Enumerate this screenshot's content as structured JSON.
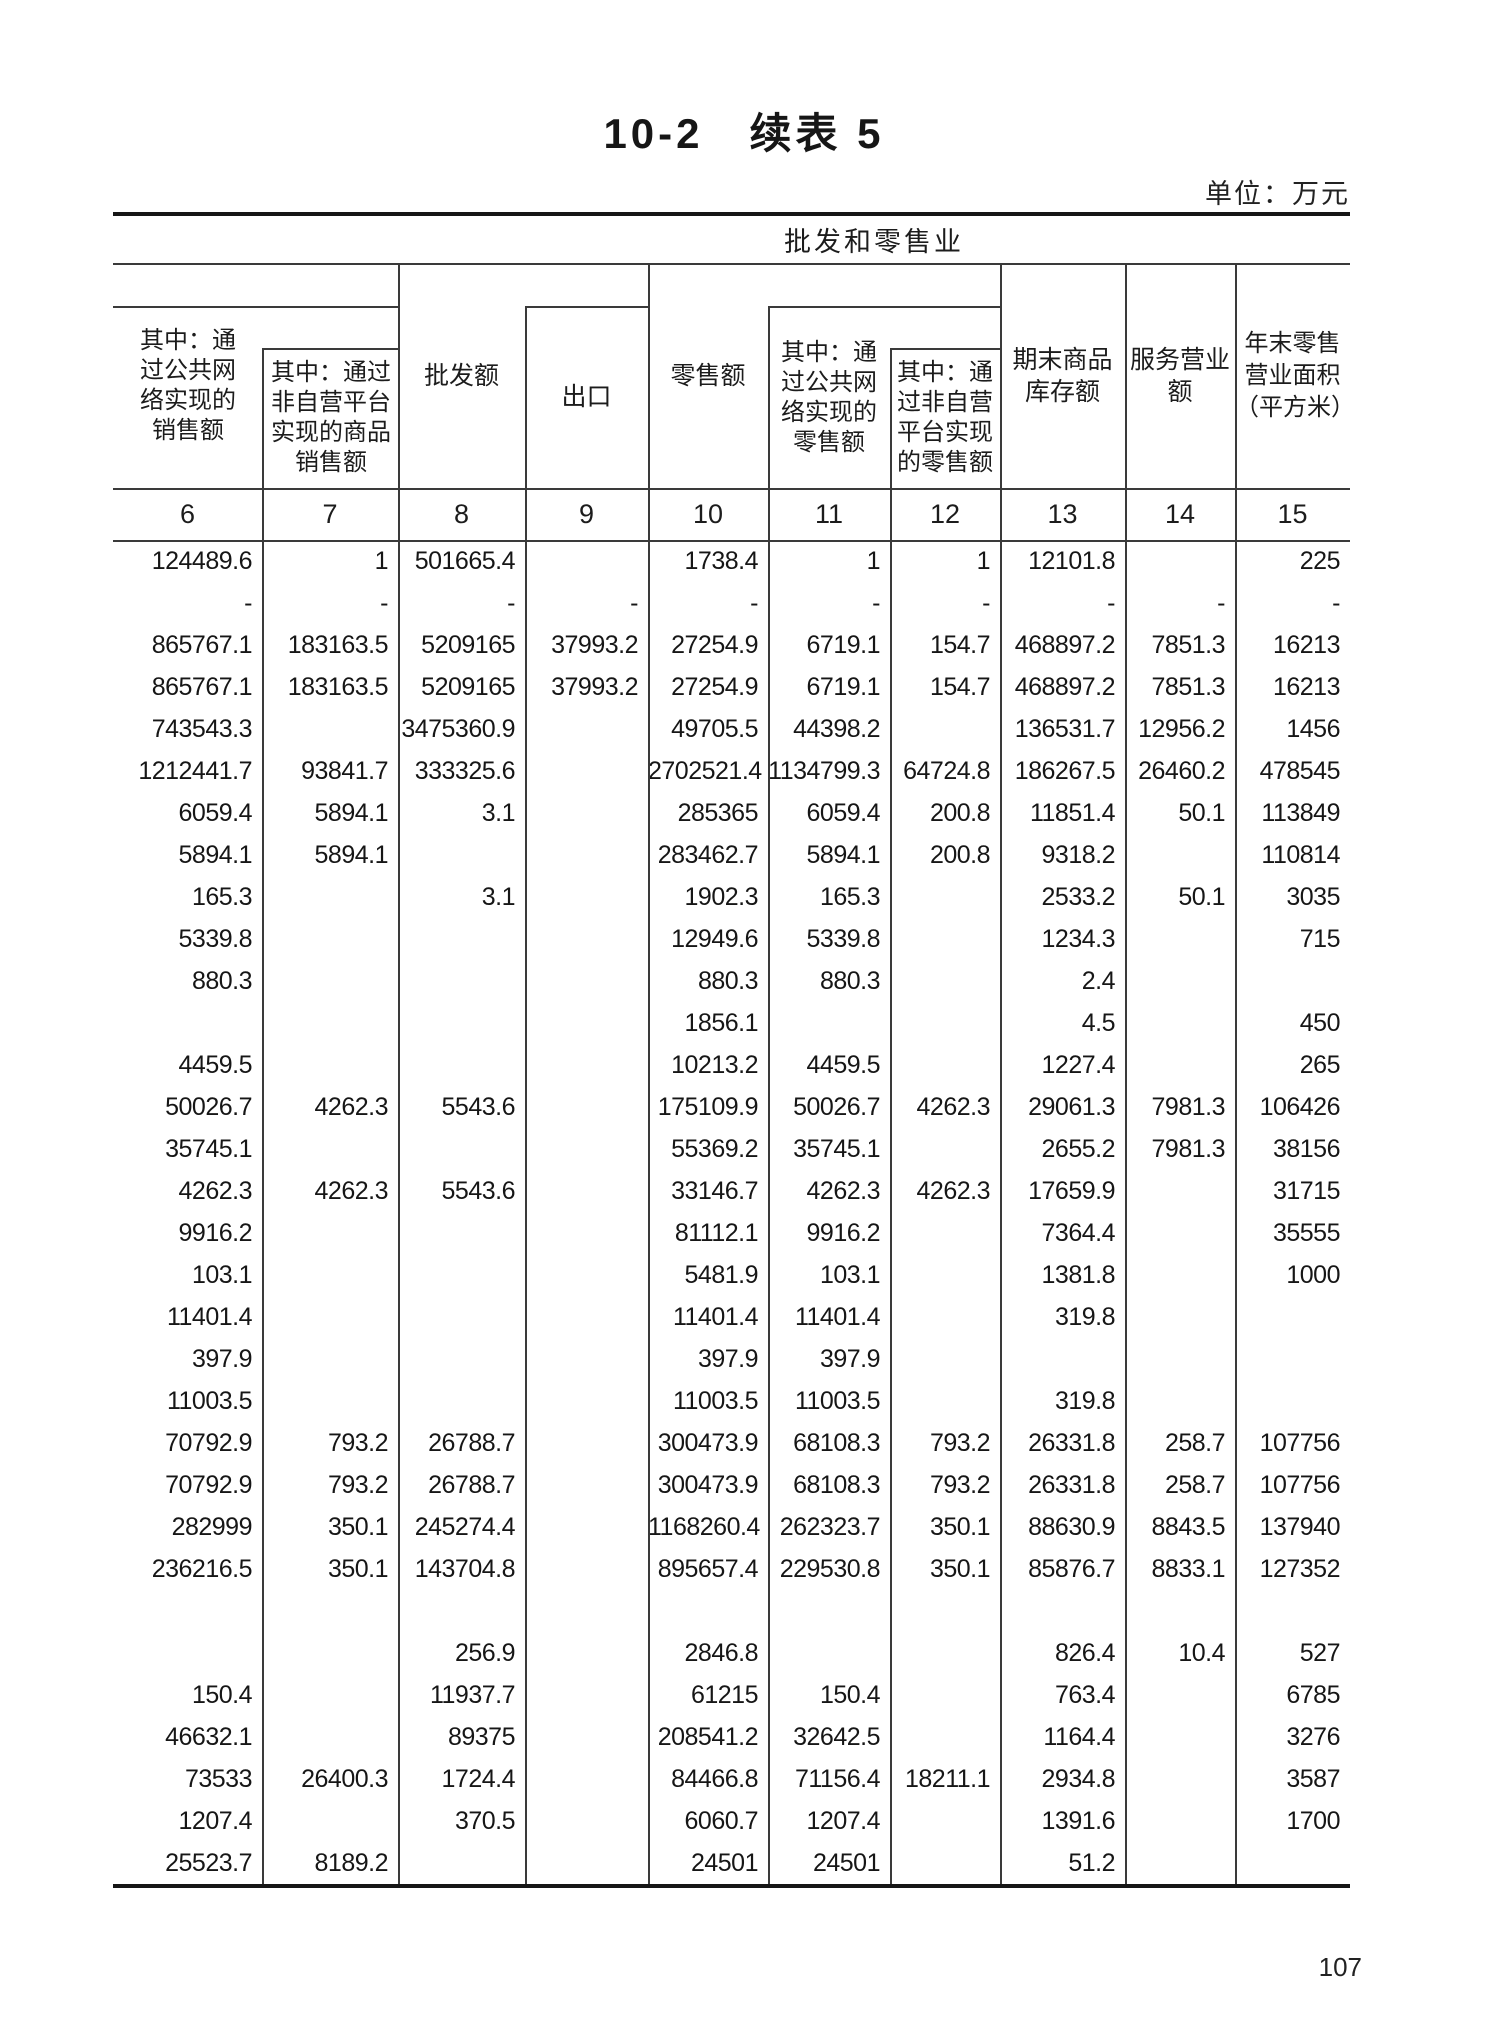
{
  "page": {
    "title": "10-2　续表 5",
    "unit_label": "单位：万元",
    "page_number": "107"
  },
  "table": {
    "group_header": "批发和零售业",
    "columns": [
      {
        "code": "6",
        "label": "其中：通\n过公共网\n络实现的\n销售额"
      },
      {
        "code": "7",
        "label": "其中：通过\n非自营平台\n实现的商品\n销售额"
      },
      {
        "code": "8",
        "label": "批发额"
      },
      {
        "code": "9",
        "label": "出口"
      },
      {
        "code": "10",
        "label": "零售额"
      },
      {
        "code": "11",
        "label": "其中：通\n过公共网\n络实现的\n零售额"
      },
      {
        "code": "12",
        "label": "其中：通\n过非自营\n平台实现\n的零售额"
      },
      {
        "code": "13",
        "label": "期末商品\n库存额"
      },
      {
        "code": "14",
        "label": "服务营业\n额"
      },
      {
        "code": "15",
        "label": "年末零售\n营业面积\n（平方米）"
      }
    ],
    "rows": [
      [
        "124489.6",
        "1",
        "501665.4",
        "",
        "1738.4",
        "1",
        "1",
        "12101.8",
        "",
        "225"
      ],
      [
        "-",
        "-",
        "-",
        "-",
        "-",
        "-",
        "-",
        "-",
        "-",
        "-"
      ],
      [
        "865767.1",
        "183163.5",
        "5209165",
        "37993.2",
        "27254.9",
        "6719.1",
        "154.7",
        "468897.2",
        "7851.3",
        "16213"
      ],
      [
        "865767.1",
        "183163.5",
        "5209165",
        "37993.2",
        "27254.9",
        "6719.1",
        "154.7",
        "468897.2",
        "7851.3",
        "16213"
      ],
      [
        "743543.3",
        "",
        "3475360.9",
        "",
        "49705.5",
        "44398.2",
        "",
        "136531.7",
        "12956.2",
        "1456"
      ],
      [
        "1212441.7",
        "93841.7",
        "333325.6",
        "",
        "2702521.4",
        "1134799.3",
        "64724.8",
        "186267.5",
        "26460.2",
        "478545"
      ],
      [
        "6059.4",
        "5894.1",
        "3.1",
        "",
        "285365",
        "6059.4",
        "200.8",
        "11851.4",
        "50.1",
        "113849"
      ],
      [
        "5894.1",
        "5894.1",
        "",
        "",
        "283462.7",
        "5894.1",
        "200.8",
        "9318.2",
        "",
        "110814"
      ],
      [
        "165.3",
        "",
        "3.1",
        "",
        "1902.3",
        "165.3",
        "",
        "2533.2",
        "50.1",
        "3035"
      ],
      [
        "5339.8",
        "",
        "",
        "",
        "12949.6",
        "5339.8",
        "",
        "1234.3",
        "",
        "715"
      ],
      [
        "880.3",
        "",
        "",
        "",
        "880.3",
        "880.3",
        "",
        "2.4",
        "",
        ""
      ],
      [
        "",
        "",
        "",
        "",
        "1856.1",
        "",
        "",
        "4.5",
        "",
        "450"
      ],
      [
        "4459.5",
        "",
        "",
        "",
        "10213.2",
        "4459.5",
        "",
        "1227.4",
        "",
        "265"
      ],
      [
        "50026.7",
        "4262.3",
        "5543.6",
        "",
        "175109.9",
        "50026.7",
        "4262.3",
        "29061.3",
        "7981.3",
        "106426"
      ],
      [
        "35745.1",
        "",
        "",
        "",
        "55369.2",
        "35745.1",
        "",
        "2655.2",
        "7981.3",
        "38156"
      ],
      [
        "4262.3",
        "4262.3",
        "5543.6",
        "",
        "33146.7",
        "4262.3",
        "4262.3",
        "17659.9",
        "",
        "31715"
      ],
      [
        "9916.2",
        "",
        "",
        "",
        "81112.1",
        "9916.2",
        "",
        "7364.4",
        "",
        "35555"
      ],
      [
        "103.1",
        "",
        "",
        "",
        "5481.9",
        "103.1",
        "",
        "1381.8",
        "",
        "1000"
      ],
      [
        "11401.4",
        "",
        "",
        "",
        "11401.4",
        "11401.4",
        "",
        "319.8",
        "",
        ""
      ],
      [
        "397.9",
        "",
        "",
        "",
        "397.9",
        "397.9",
        "",
        "",
        "",
        ""
      ],
      [
        "11003.5",
        "",
        "",
        "",
        "11003.5",
        "11003.5",
        "",
        "319.8",
        "",
        ""
      ],
      [
        "70792.9",
        "793.2",
        "26788.7",
        "",
        "300473.9",
        "68108.3",
        "793.2",
        "26331.8",
        "258.7",
        "107756"
      ],
      [
        "70792.9",
        "793.2",
        "26788.7",
        "",
        "300473.9",
        "68108.3",
        "793.2",
        "26331.8",
        "258.7",
        "107756"
      ],
      [
        "282999",
        "350.1",
        "245274.4",
        "",
        "1168260.4",
        "262323.7",
        "350.1",
        "88630.9",
        "8843.5",
        "137940"
      ],
      [
        "236216.5",
        "350.1",
        "143704.8",
        "",
        "895657.4",
        "229530.8",
        "350.1",
        "85876.7",
        "8833.1",
        "127352"
      ],
      [
        "",
        "",
        "",
        "",
        "",
        "",
        "",
        "",
        "",
        ""
      ],
      [
        "",
        "",
        "256.9",
        "",
        "2846.8",
        "",
        "",
        "826.4",
        "10.4",
        "527"
      ],
      [
        "150.4",
        "",
        "11937.7",
        "",
        "61215",
        "150.4",
        "",
        "763.4",
        "",
        "6785"
      ],
      [
        "46632.1",
        "",
        "89375",
        "",
        "208541.2",
        "32642.5",
        "",
        "1164.4",
        "",
        "3276"
      ],
      [
        "73533",
        "26400.3",
        "1724.4",
        "",
        "84466.8",
        "71156.4",
        "18211.1",
        "2934.8",
        "",
        "3587"
      ],
      [
        "1207.4",
        "",
        "370.5",
        "",
        "6060.7",
        "1207.4",
        "",
        "1391.6",
        "",
        "1700"
      ],
      [
        "25523.7",
        "8189.2",
        "",
        "",
        "24501",
        "24501",
        "",
        "51.2",
        "",
        ""
      ]
    ]
  }
}
